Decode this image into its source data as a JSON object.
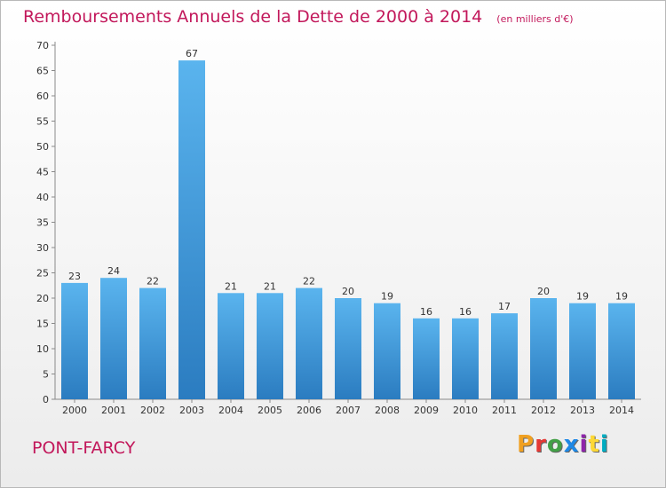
{
  "header": {
    "title": "Remboursements Annuels de la Dette de 2000 à 2014",
    "subtitle": "(en milliers d'€)"
  },
  "footer": {
    "commune": "PONT-FARCY",
    "logo_text": "Proxiti",
    "logo_colors": [
      "#f0a020",
      "#e53935",
      "#43a047",
      "#1e88e5",
      "#8e24aa",
      "#fdd835",
      "#00acc1"
    ]
  },
  "chart_data": {
    "type": "bar",
    "categories": [
      "2000",
      "2001",
      "2002",
      "2003",
      "2004",
      "2005",
      "2006",
      "2007",
      "2008",
      "2009",
      "2010",
      "2011",
      "2012",
      "2013",
      "2014"
    ],
    "values": [
      23,
      24,
      22,
      67,
      21,
      21,
      22,
      20,
      19,
      16,
      16,
      17,
      20,
      19,
      19
    ],
    "yticks": [
      0,
      5,
      10,
      15,
      20,
      25,
      30,
      35,
      40,
      45,
      50,
      55,
      60,
      65,
      70
    ],
    "ylim": [
      0,
      70
    ],
    "grid": false,
    "bar_color_top": "#5ab4ee",
    "bar_color_bottom": "#2b7cc0",
    "axis_color": "#8a8a8a"
  }
}
